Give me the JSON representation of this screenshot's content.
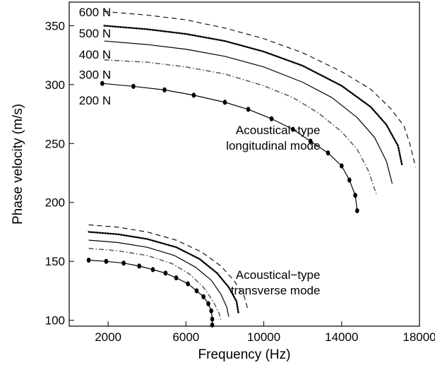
{
  "chart_data": {
    "type": "line",
    "xlabel": "Frequency (Hz)",
    "ylabel": "Phase velocity (m/s)",
    "xlim": [
      0,
      18000
    ],
    "ylim": [
      95,
      370
    ],
    "xticks": [
      2000,
      6000,
      10000,
      14000,
      18000
    ],
    "yticks": [
      100,
      150,
      200,
      250,
      300,
      350
    ],
    "grid": false,
    "annotations": [
      {
        "lines": [
          "Acoustical−type",
          "longitudinal mode"
        ],
        "at": [
          12900,
          258
        ],
        "anchor": "end"
      },
      {
        "lines": [
          "Acoustical−type",
          "transverse mode"
        ],
        "at": [
          12900,
          135
        ],
        "anchor": "end"
      }
    ],
    "load_labels": [
      {
        "text": "600 N",
        "at": [
          500,
          358
        ]
      },
      {
        "text": "500 N",
        "at": [
          500,
          340
        ]
      },
      {
        "text": "400 N",
        "at": [
          500,
          322
        ]
      },
      {
        "text": "300 N",
        "at": [
          500,
          305
        ]
      },
      {
        "text": "200 N",
        "at": [
          500,
          283
        ]
      }
    ],
    "series": [
      {
        "mode": "longitudinal",
        "load": "600 N",
        "style": "dashed",
        "color": "#000000",
        "x": [
          1800,
          4000,
          6000,
          8000,
          10000,
          12000,
          14000,
          15500,
          16500,
          17200,
          17500,
          17800
        ],
        "y": [
          362,
          359,
          355,
          348,
          339,
          327,
          311,
          296,
          280,
          265,
          250,
          230
        ]
      },
      {
        "mode": "longitudinal",
        "load": "500 N",
        "style": "dotted",
        "color": "#000000",
        "x": [
          1800,
          4000,
          6000,
          8000,
          10000,
          12000,
          14000,
          15500,
          16300,
          16900,
          17100
        ],
        "y": [
          350,
          347,
          343,
          337,
          328,
          316,
          299,
          281,
          266,
          248,
          232
        ]
      },
      {
        "mode": "longitudinal",
        "load": "400 N",
        "style": "solid",
        "color": "#000000",
        "x": [
          1800,
          4000,
          6000,
          8000,
          10000,
          12000,
          13500,
          14800,
          15700,
          16300,
          16600
        ],
        "y": [
          337,
          334,
          330,
          324,
          315,
          302,
          289,
          272,
          255,
          235,
          216
        ]
      },
      {
        "mode": "longitudinal",
        "load": "300 N",
        "style": "dashdot",
        "color": "#606060",
        "x": [
          1800,
          4000,
          6000,
          8000,
          10000,
          11500,
          12800,
          14000,
          14800,
          15400,
          15800
        ],
        "y": [
          321,
          319,
          315,
          309,
          299,
          289,
          276,
          260,
          245,
          226,
          206
        ]
      },
      {
        "mode": "longitudinal",
        "load": "200 N",
        "style": "solid-markers",
        "color": "#000000",
        "x": [
          1700,
          3300,
          4900,
          6400,
          8000,
          9200,
          10400,
          11500,
          12400,
          13300,
          14000,
          14400,
          14700,
          14800
        ],
        "y": [
          301,
          298.5,
          295.5,
          291,
          285,
          279,
          271,
          262,
          252,
          242,
          231,
          219,
          206,
          193
        ]
      },
      {
        "mode": "transverse",
        "load": "600 N",
        "style": "dashed",
        "color": "#000000",
        "x": [
          1000,
          2500,
          4000,
          5500,
          6800,
          7800,
          8500,
          9000,
          9200
        ],
        "y": [
          181,
          179,
          175,
          168,
          158,
          146,
          133,
          120,
          108
        ]
      },
      {
        "mode": "transverse",
        "load": "500 N",
        "style": "dotted",
        "color": "#000000",
        "x": [
          1000,
          2500,
          4000,
          5500,
          6700,
          7600,
          8200,
          8600,
          8700
        ],
        "y": [
          175,
          173,
          169,
          162,
          152,
          140,
          128,
          116,
          106
        ]
      },
      {
        "mode": "transverse",
        "load": "400 N",
        "style": "solid",
        "color": "#000000",
        "x": [
          1000,
          2500,
          4000,
          5400,
          6500,
          7300,
          7800,
          8100,
          8200
        ],
        "y": [
          168,
          166,
          162,
          155,
          145,
          134,
          122,
          111,
          103
        ]
      },
      {
        "mode": "transverse",
        "load": "300 N",
        "style": "dashdot",
        "color": "#606060",
        "x": [
          1000,
          2500,
          4000,
          5300,
          6200,
          6900,
          7400,
          7700,
          7800
        ],
        "y": [
          161,
          159,
          155,
          148,
          139,
          128,
          116,
          106,
          100
        ]
      },
      {
        "mode": "transverse",
        "load": "200 N",
        "style": "solid-markers",
        "color": "#000000",
        "x": [
          1000,
          1900,
          2800,
          3600,
          4300,
          4950,
          5500,
          6100,
          6550,
          6900,
          7150,
          7300,
          7350,
          7350
        ],
        "y": [
          151,
          150,
          148.5,
          146,
          143,
          140,
          136,
          131,
          125,
          120,
          114,
          108,
          101,
          96
        ]
      }
    ]
  }
}
